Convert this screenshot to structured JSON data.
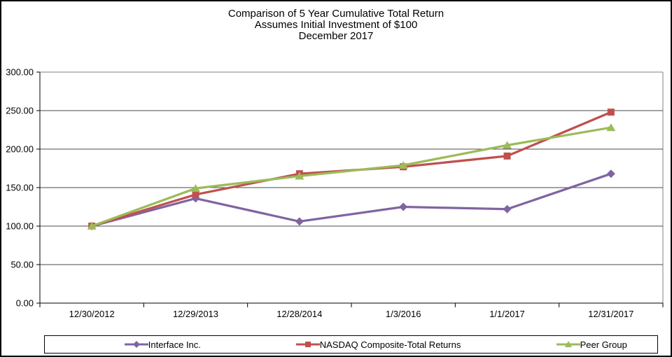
{
  "chart_data": {
    "type": "line",
    "title_lines": [
      "Comparison  of 5 Year Cumulative  Total Return",
      "Assumes Initial Investment  of $100",
      "December 2017"
    ],
    "categories": [
      "12/30/2012",
      "12/29/2013",
      "12/28/2014",
      "1/3/2016",
      "1/1/2017",
      "12/31/2017"
    ],
    "series": [
      {
        "name": "Interface Inc.",
        "color": "#8064A2",
        "marker": "diamond",
        "values": [
          100,
          136,
          106,
          125,
          122,
          168
        ]
      },
      {
        "name": "NASDAQ Composite-Total Returns",
        "color": "#C0504D",
        "marker": "square",
        "values": [
          100,
          141,
          168,
          177,
          191,
          248
        ]
      },
      {
        "name": "Peer Group",
        "color": "#9BBB59",
        "marker": "triangle",
        "values": [
          100,
          149,
          165,
          179,
          205,
          228
        ]
      }
    ],
    "xlabel": "",
    "ylabel": "",
    "ylim": [
      0,
      300
    ],
    "ytick_step": 50,
    "ytick_labels": [
      "0.00",
      "50.00",
      "100.00",
      "150.00",
      "200.00",
      "250.00",
      "300.00"
    ],
    "grid": true,
    "legend_position": "bottom"
  },
  "styles": {
    "axis_color": "#000000",
    "gridline_color": "#4a4a4a",
    "plot_border_color": "#7f7f7f",
    "frame_border_color": "#000000",
    "text_color": "#000000"
  }
}
